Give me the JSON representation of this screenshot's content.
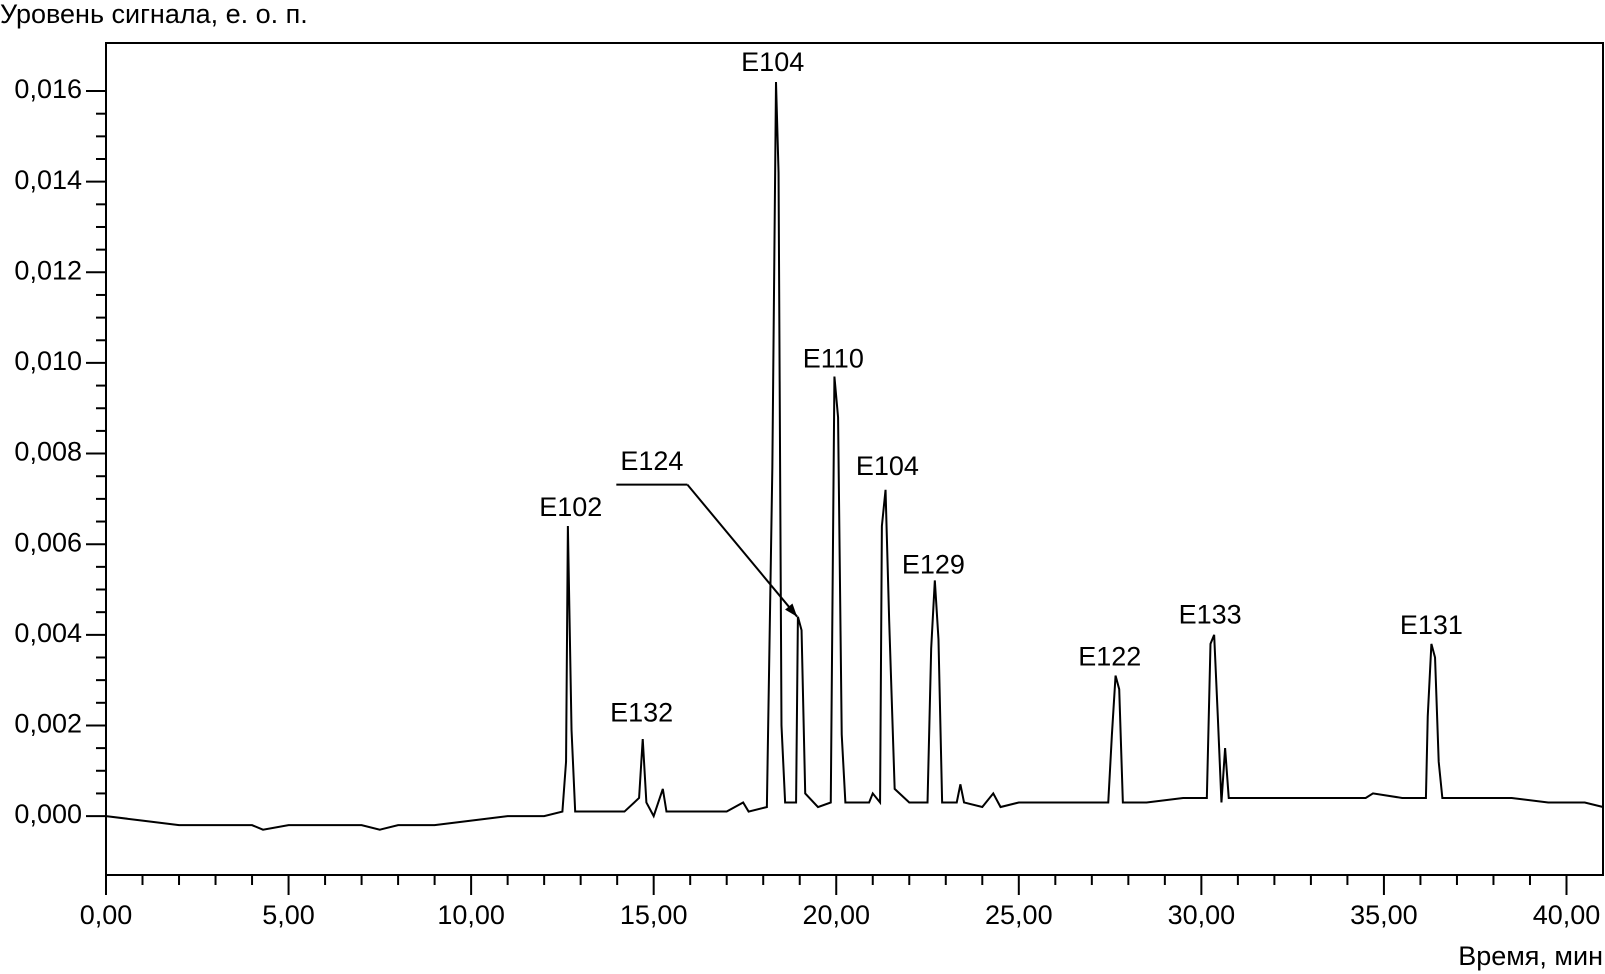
{
  "chart_data": {
    "type": "line",
    "y_label": "Уровень сигнала, е. о. п.",
    "x_label": "Время, мин",
    "color": "#000000",
    "xlim": [
      0,
      41
    ],
    "ylim": [
      -0.0013,
      0.01706
    ],
    "xticks": [
      {
        "value": 0,
        "label": "0,00"
      },
      {
        "value": 5,
        "label": "5,00"
      },
      {
        "value": 10,
        "label": "10,00"
      },
      {
        "value": 15,
        "label": "15,00"
      },
      {
        "value": 20,
        "label": "20,00"
      },
      {
        "value": 25,
        "label": "25,00"
      },
      {
        "value": 30,
        "label": "30,00"
      },
      {
        "value": 35,
        "label": "35,00"
      },
      {
        "value": 40,
        "label": "40,00"
      }
    ],
    "yticks": [
      {
        "value": 0,
        "label": "0,000"
      },
      {
        "value": 0.002,
        "label": "0,002"
      },
      {
        "value": 0.004,
        "label": "0,004"
      },
      {
        "value": 0.006,
        "label": "0,006"
      },
      {
        "value": 0.008,
        "label": "0,008"
      },
      {
        "value": 0.01,
        "label": "0,010"
      },
      {
        "value": 0.012,
        "label": "0,012"
      },
      {
        "value": 0.014,
        "label": "0,014"
      },
      {
        "value": 0.016,
        "label": "0,016"
      }
    ],
    "x": [
      0,
      1,
      2,
      3,
      4,
      4.3,
      5,
      6,
      7,
      7.5,
      8,
      9,
      10,
      11,
      12,
      12.5,
      12.6,
      12.65,
      12.75,
      12.85,
      13.5,
      14.2,
      14.6,
      14.7,
      14.8,
      15.0,
      15.25,
      15.35,
      16,
      17,
      17.45,
      17.6,
      18.1,
      18.25,
      18.35,
      18.42,
      18.5,
      18.6,
      18.9,
      18.95,
      19.05,
      19.15,
      19.5,
      19.85,
      19.95,
      20.05,
      20.15,
      20.25,
      20.9,
      21.0,
      21.2,
      21.25,
      21.35,
      21.45,
      21.6,
      22.0,
      22.5,
      22.6,
      22.7,
      22.8,
      22.9,
      23.3,
      23.4,
      23.5,
      24.0,
      24.3,
      24.5,
      25,
      26,
      27,
      27.45,
      27.55,
      27.65,
      27.75,
      27.85,
      28.5,
      29.5,
      30.15,
      30.25,
      30.35,
      30.45,
      30.55,
      30.65,
      30.75,
      31.5,
      32.5,
      33.5,
      34.5,
      34.7,
      35.5,
      36.15,
      36.2,
      36.3,
      36.4,
      36.5,
      36.6,
      37.5,
      38.5,
      39.5,
      40.5,
      41
    ],
    "values": [
      0.0,
      -0.0001,
      -0.0002,
      -0.0002,
      -0.0002,
      -0.0003,
      -0.0002,
      -0.0002,
      -0.0002,
      -0.0003,
      -0.0002,
      -0.0002,
      -0.0001,
      0.0,
      0.0,
      0.0001,
      0.0012,
      0.0064,
      0.0019,
      0.0001,
      0.0001,
      0.0001,
      0.0004,
      0.0017,
      0.0003,
      0.0,
      0.0006,
      0.0001,
      0.0001,
      0.0001,
      0.0003,
      0.0001,
      0.0002,
      0.0077,
      0.0162,
      0.0142,
      0.002,
      0.0003,
      0.0003,
      0.0044,
      0.0041,
      0.0005,
      0.0002,
      0.0003,
      0.0097,
      0.0088,
      0.0018,
      0.0003,
      0.0003,
      0.0005,
      0.0003,
      0.0064,
      0.0072,
      0.0043,
      0.0006,
      0.0003,
      0.0003,
      0.0037,
      0.0052,
      0.0039,
      0.0003,
      0.0003,
      0.0007,
      0.0003,
      0.0002,
      0.0005,
      0.0002,
      0.0003,
      0.0003,
      0.0003,
      0.0003,
      0.0018,
      0.0031,
      0.0028,
      0.0003,
      0.0003,
      0.0004,
      0.0004,
      0.0038,
      0.004,
      0.0022,
      0.0003,
      0.0015,
      0.0004,
      0.0004,
      0.0004,
      0.0004,
      0.0004,
      0.0005,
      0.0004,
      0.0004,
      0.0022,
      0.0038,
      0.0035,
      0.0012,
      0.0004,
      0.0004,
      0.0004,
      0.0003,
      0.0003,
      0.0002
    ],
    "annotations": [
      {
        "text": "E102",
        "x": 12.73,
        "y": 0.00678
      },
      {
        "text": "E132",
        "x": 14.67,
        "y": 0.00224
      },
      {
        "text": "E124",
        "x": 14.95,
        "y": 0.0078,
        "arrow": [
          18.93,
          0.0044
        ]
      },
      {
        "text": "E104",
        "x": 18.26,
        "y": 0.0166
      },
      {
        "text": "E110",
        "x": 19.92,
        "y": 0.01006
      },
      {
        "text": "E104",
        "x": 21.4,
        "y": 0.00768
      },
      {
        "text": "E129",
        "x": 22.66,
        "y": 0.00551
      },
      {
        "text": "E122",
        "x": 27.49,
        "y": 0.00348
      },
      {
        "text": "E133",
        "x": 30.24,
        "y": 0.00441
      },
      {
        "text": "E131",
        "x": 36.3,
        "y": 0.00418
      }
    ]
  }
}
